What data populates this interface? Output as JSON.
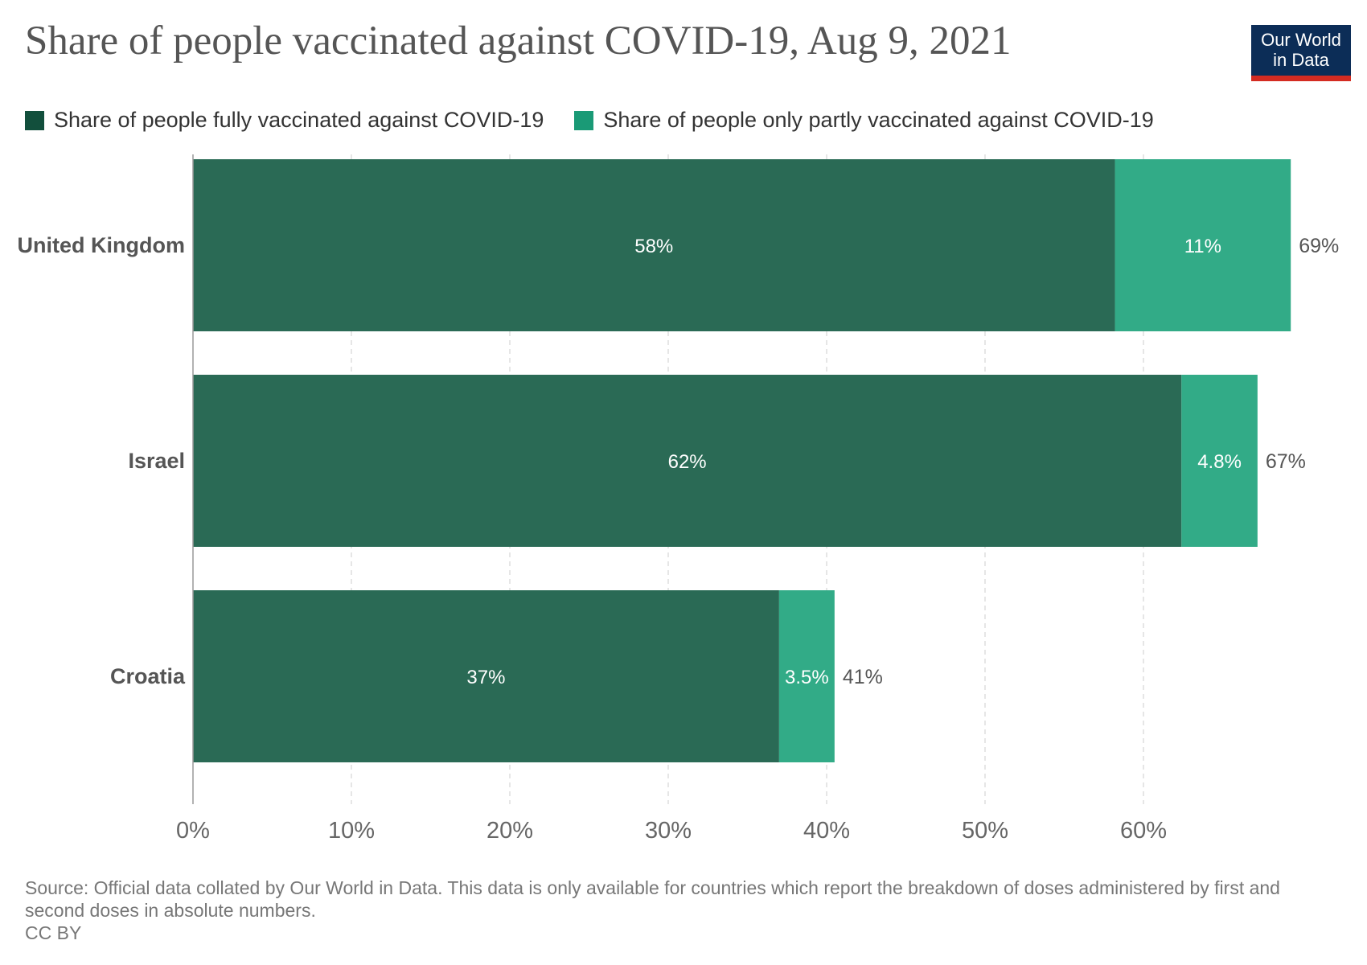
{
  "title": "Share of people vaccinated against COVID-19, Aug 9, 2021",
  "logo": {
    "line1": "Our World",
    "line2": "in Data"
  },
  "legend": [
    {
      "label": "Share of people fully vaccinated against COVID-19",
      "color": "#2a6a55"
    },
    {
      "label": "Share of people only partly vaccinated against COVID-19",
      "color": "#32ab87"
    }
  ],
  "chart_data": {
    "type": "bar",
    "orientation": "horizontal",
    "stacked": true,
    "categories": [
      "United Kingdom",
      "Israel",
      "Croatia"
    ],
    "series": [
      {
        "name": "Share of people fully vaccinated against COVID-19",
        "values": [
          58.2,
          62.4,
          37.0
        ],
        "labels": [
          "58%",
          "62%",
          "37%"
        ],
        "color": "#2a6a55"
      },
      {
        "name": "Share of people only partly vaccinated against COVID-19",
        "values": [
          11.1,
          4.8,
          3.5
        ],
        "labels": [
          "11%",
          "4.8%",
          "3.5%"
        ],
        "color": "#32ab87"
      }
    ],
    "totals": [
      "69%",
      "67%",
      "41%"
    ],
    "xlim": [
      0,
      70
    ],
    "xticks": [
      0,
      10,
      20,
      30,
      40,
      50,
      60
    ],
    "xtick_labels": [
      "0%",
      "10%",
      "20%",
      "30%",
      "40%",
      "50%",
      "60%"
    ],
    "grid": true,
    "legend_position": "top-left"
  },
  "footer": {
    "source": "Source: Official data collated by Our World in Data. This data is only available for countries which report the breakdown of doses administered by first and second doses in absolute numbers.",
    "license": "CC BY"
  }
}
